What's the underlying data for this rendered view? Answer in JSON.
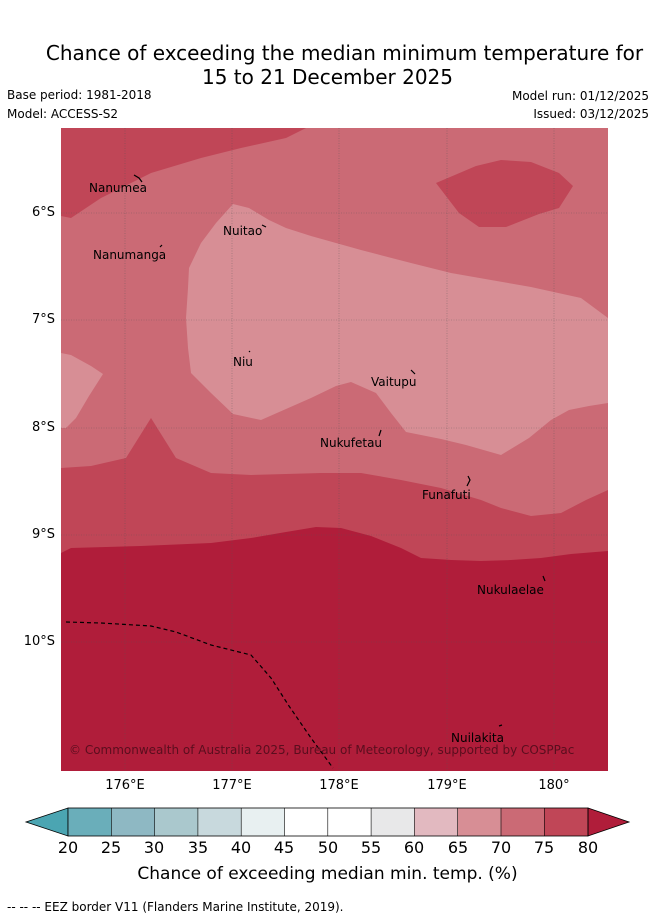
{
  "title_line1": "Chance of exceeding the median minimum temperature for",
  "title_line2": "15 to 21 December 2025",
  "meta": {
    "base_period": "Base period: 1981-2018",
    "model": "Model: ACCESS-S2",
    "model_run": "Model run: 01/12/2025",
    "issued": "Issued: 03/12/2025"
  },
  "map": {
    "copyright": "© Commonwealth of Australia 2025, Bureau of Meteorology, supported by COSPPac",
    "places": [
      "Nanumea",
      "Nuitao",
      "Nanumanga",
      "Niu",
      "Vaitupu",
      "Nukufetau",
      "Funafuti",
      "Nukulaelae",
      "Nuilakita"
    ],
    "lat_labels": [
      "6°S",
      "7°S",
      "8°S",
      "9°S",
      "10°S"
    ],
    "lon_labels": [
      "176°E",
      "177°E",
      "178°E",
      "179°E",
      "180°"
    ],
    "layer_colors": {
      "p55_60": "#e8e8e9",
      "p60_65": "#e2b9c0",
      "p65_70": "#d78e95",
      "p70_75": "#cb6a75",
      "p75_80": "#c04657",
      "p80_plus": "#b01d3a"
    }
  },
  "colorbar": {
    "ticks": [
      "20",
      "25",
      "30",
      "35",
      "40",
      "45",
      "50",
      "55",
      "60",
      "65",
      "70",
      "75",
      "80"
    ],
    "colors": [
      "#4ba5b2",
      "#6aaeba",
      "#8eb8c3",
      "#aac8cd",
      "#c8d9dd",
      "#e8f0f1",
      "#ffffff",
      "#ffffff",
      "#e8e8e9",
      "#e2b9c0",
      "#d78e95",
      "#cb6a75",
      "#c04657",
      "#b01d3a"
    ],
    "title": "Chance of exceeding median min. temp. (%)"
  },
  "footer": "--  --  -- EEZ border V11 (Flanders Marine Institute, 2019)."
}
